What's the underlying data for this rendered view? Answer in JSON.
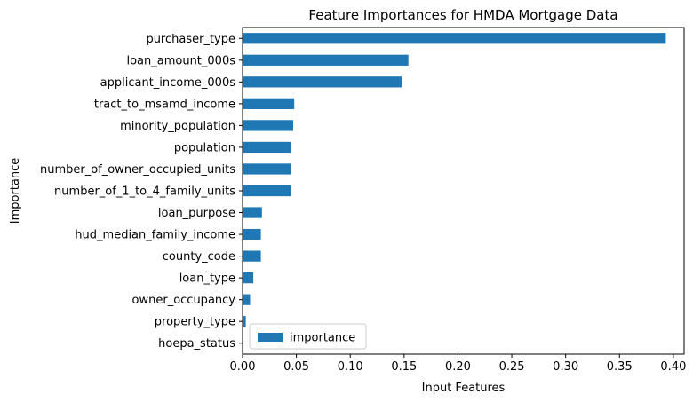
{
  "chart_data": {
    "type": "bar",
    "orientation": "horizontal",
    "title": "Feature Importances for HMDA Mortgage Data",
    "xlabel": "Input Features",
    "ylabel": "Importance",
    "xlim": [
      0,
      0.41
    ],
    "xticks": [
      "0.00",
      "0.05",
      "0.10",
      "0.15",
      "0.20",
      "0.25",
      "0.30",
      "0.35",
      "0.40"
    ],
    "grid": false,
    "legend_position": "bottom-left",
    "bar_color": "#1f77b4",
    "categories": [
      "purchaser_type",
      "loan_amount_000s",
      "applicant_income_000s",
      "tract_to_msamd_income",
      "minority_population",
      "population",
      "number_of_owner_occupied_units",
      "number_of_1_to_4_family_units",
      "loan_purpose",
      "hud_median_family_income",
      "county_code",
      "loan_type",
      "owner_occupancy",
      "property_type",
      "hoepa_status"
    ],
    "series": [
      {
        "name": "importance",
        "values": [
          0.393,
          0.154,
          0.148,
          0.048,
          0.047,
          0.045,
          0.045,
          0.045,
          0.018,
          0.017,
          0.017,
          0.01,
          0.007,
          0.003,
          0.0
        ]
      }
    ]
  }
}
